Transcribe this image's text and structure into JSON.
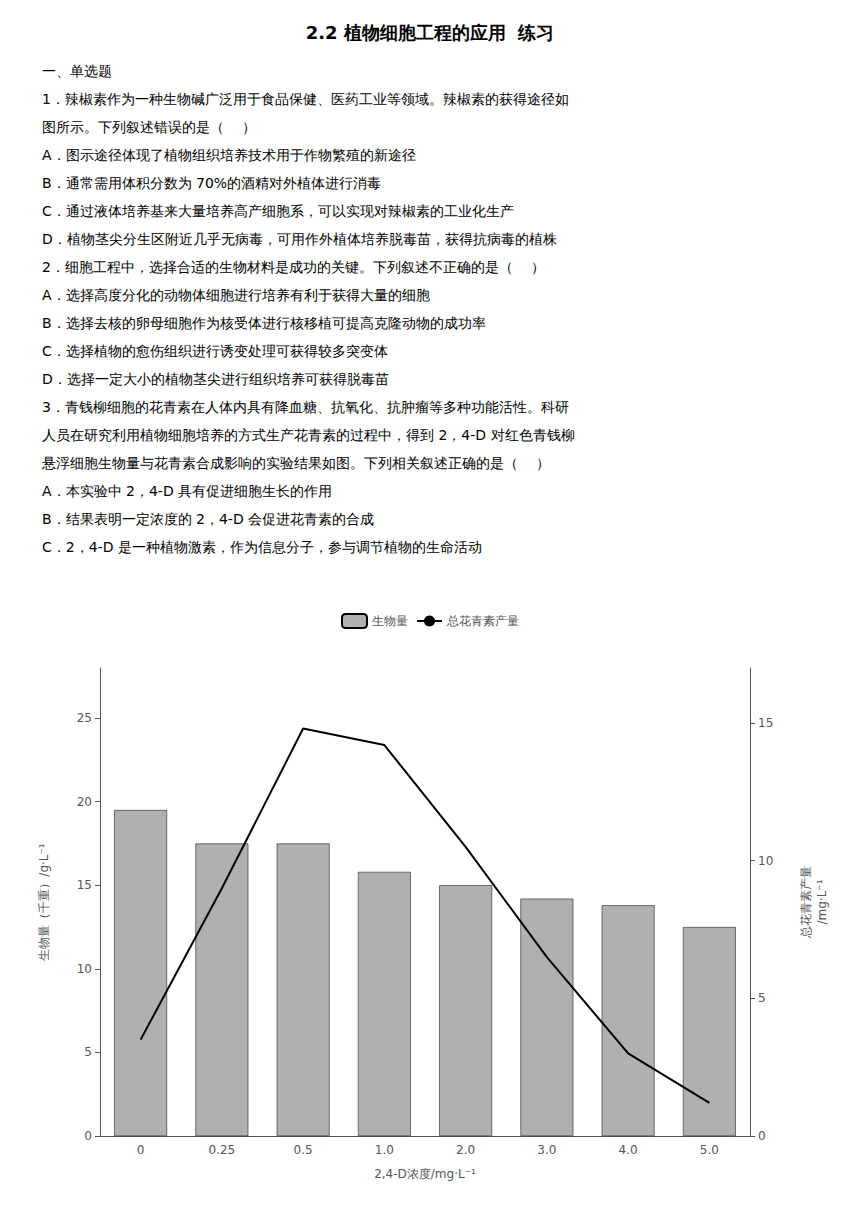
{
  "chart_data": {
    "type": "bar",
    "title": "2.2 植物细胞工程的应用  练习",
    "annotations": [
      "一、单选题",
      "1．辣椒素作为一种生物碱广泛用于食品保健、医药工业等领域。辣椒素的获得途径如",
      "图所示。下列叙述错误的是（    ）",
      "A．图示途径体现了植物组织培养技术用于作物繁殖的新途径",
      "B．通常需用体积分数为 70%的酒精对外植体进行消毒",
      "C．通过液体培养基来大量培养高产细胞系，可以实现对辣椒素的工业化生产",
      "D．植物茎尖分生区附近几乎无病毒，可用作外植体培养脱毒苗，获得抗病毒的植株",
      "2．细胞工程中，选择合适的生物材料是成功的关键。下列叙述不正确的是（    ）",
      "A．选择高度分化的动物体细胞进行培养有利于获得大量的细胞",
      "B．选择去核的卵母细胞作为核受体进行核移植可提高克隆动物的成功率",
      "C．选择植物的愈伤组织进行诱变处理可获得较多突变体",
      "D．选择一定大小的植物茎尖进行组织培养可获得脱毒苗",
      "3．青钱柳细胞的花青素在人体内具有降血糖、抗氧化、抗肿瘤等多种功能活性。科研",
      "人员在研究利用植物细胞培养的方式生产花青素的过程中，得到 2，4-D 对红色青钱柳",
      "悬浮细胞生物量与花青素合成影响的实验结果如图。下列相关叙述正确的是（    ）",
      "A．本实验中 2，4-D 具有促进细胞生长的作用",
      "B．结果表明一定浓度的 2，4-D 会促进花青素的合成",
      "C．2，4-D 是一种植物激素，作为信息分子，参与调节植物的生命活动"
    ],
    "categories": [
      "0",
      "0.25",
      "0.5",
      "1.0",
      "2.0",
      "3.0",
      "4.0",
      "5.0"
    ],
    "series": [
      {
        "name": "生物量",
        "type": "bar",
        "color": "#b0b0b0",
        "values": [
          19.5,
          17.5,
          17.5,
          15.8,
          15.0,
          14.2,
          13.8,
          12.5
        ]
      },
      {
        "name": "总花青素产量",
        "type": "line",
        "color": "#000000",
        "axis": "y2",
        "values": [
          3.5,
          9.0,
          14.8,
          14.2,
          10.5,
          6.5,
          3.0,
          1.2
        ]
      }
    ],
    "xlabel": "2,4-D浓度/mg·L⁻¹",
    "ylabel": "生物量（千重）/g·L⁻¹",
    "y2label": "总花青素产量\n/mg·L⁻¹",
    "ylim": [
      0,
      28
    ],
    "yticks": [
      0,
      5,
      10,
      15,
      20,
      25
    ],
    "y2lim": [
      0,
      17
    ],
    "y2ticks": [
      0,
      5,
      10,
      15
    ],
    "grid": false,
    "legend": "top"
  }
}
